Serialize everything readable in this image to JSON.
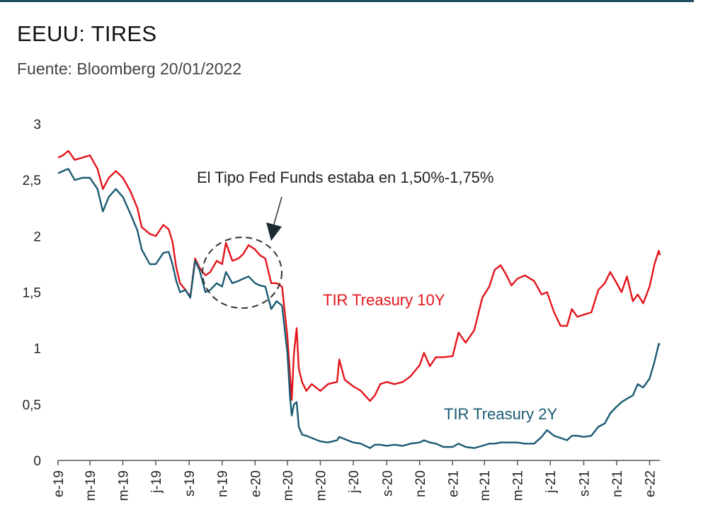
{
  "title": "EEUU: TIRES",
  "subtitle": "Fuente: Bloomberg 20/01/2022",
  "chart_data": {
    "type": "line",
    "title": "EEUU: TIRES",
    "subtitle": "Fuente: Bloomberg 20/01/2022",
    "ylim": [
      0,
      3
    ],
    "yticks": [
      0,
      0.5,
      1,
      1.5,
      2,
      2.5,
      3
    ],
    "ytick_labels": [
      "0",
      "0,5",
      "1",
      "1,5",
      "2",
      "2,5",
      "3"
    ],
    "xlim": [
      "2019-01-01",
      "2022-01-20"
    ],
    "xticks": [
      "2019-01-01",
      "2019-03-01",
      "2019-05-01",
      "2019-07-01",
      "2019-09-01",
      "2019-11-01",
      "2020-01-01",
      "2020-03-01",
      "2020-05-01",
      "2020-07-01",
      "2020-09-01",
      "2020-11-01",
      "2021-01-01",
      "2021-03-01",
      "2021-05-01",
      "2021-07-01",
      "2021-09-01",
      "2021-11-01",
      "2022-01-01"
    ],
    "xtick_labels": [
      "e-19",
      "m-19",
      "m-19",
      "j-19",
      "s-19",
      "n-19",
      "e-20",
      "m-20",
      "m-20",
      "j-20",
      "s-20",
      "n-20",
      "e-21",
      "m-21",
      "m-21",
      "j-21",
      "s-21",
      "n-21",
      "e-22"
    ],
    "grid": false,
    "series": [
      {
        "name": "TIR Treasury 10Y",
        "color": "#e3141b",
        "points": [
          [
            "2019-01-01",
            2.7
          ],
          [
            "2019-01-10",
            2.72
          ],
          [
            "2019-01-20",
            2.76
          ],
          [
            "2019-02-01",
            2.68
          ],
          [
            "2019-02-15",
            2.7
          ],
          [
            "2019-03-01",
            2.72
          ],
          [
            "2019-03-15",
            2.6
          ],
          [
            "2019-03-25",
            2.42
          ],
          [
            "2019-04-05",
            2.52
          ],
          [
            "2019-04-18",
            2.58
          ],
          [
            "2019-05-01",
            2.52
          ],
          [
            "2019-05-15",
            2.4
          ],
          [
            "2019-05-28",
            2.25
          ],
          [
            "2019-06-05",
            2.08
          ],
          [
            "2019-06-20",
            2.02
          ],
          [
            "2019-07-01",
            2.0
          ],
          [
            "2019-07-15",
            2.1
          ],
          [
            "2019-07-25",
            2.06
          ],
          [
            "2019-08-01",
            1.95
          ],
          [
            "2019-08-08",
            1.72
          ],
          [
            "2019-08-15",
            1.58
          ],
          [
            "2019-08-25",
            1.52
          ],
          [
            "2019-09-03",
            1.46
          ],
          [
            "2019-09-12",
            1.8
          ],
          [
            "2019-09-20",
            1.72
          ],
          [
            "2019-10-01",
            1.65
          ],
          [
            "2019-10-10",
            1.68
          ],
          [
            "2019-10-22",
            1.78
          ],
          [
            "2019-11-01",
            1.75
          ],
          [
            "2019-11-08",
            1.94
          ],
          [
            "2019-11-20",
            1.78
          ],
          [
            "2019-12-01",
            1.8
          ],
          [
            "2019-12-10",
            1.84
          ],
          [
            "2019-12-20",
            1.92
          ],
          [
            "2020-01-01",
            1.88
          ],
          [
            "2020-01-10",
            1.83
          ],
          [
            "2020-01-20",
            1.8
          ],
          [
            "2020-01-31",
            1.58
          ],
          [
            "2020-02-10",
            1.58
          ],
          [
            "2020-02-20",
            1.55
          ],
          [
            "2020-03-01",
            1.1
          ],
          [
            "2020-03-06",
            0.75
          ],
          [
            "2020-03-09",
            0.54
          ],
          [
            "2020-03-13",
            0.95
          ],
          [
            "2020-03-18",
            1.18
          ],
          [
            "2020-03-22",
            0.82
          ],
          [
            "2020-03-28",
            0.7
          ],
          [
            "2020-04-05",
            0.62
          ],
          [
            "2020-04-15",
            0.68
          ],
          [
            "2020-05-01",
            0.62
          ],
          [
            "2020-05-15",
            0.68
          ],
          [
            "2020-06-01",
            0.7
          ],
          [
            "2020-06-05",
            0.9
          ],
          [
            "2020-06-15",
            0.72
          ],
          [
            "2020-07-01",
            0.66
          ],
          [
            "2020-07-15",
            0.62
          ],
          [
            "2020-08-01",
            0.53
          ],
          [
            "2020-08-10",
            0.58
          ],
          [
            "2020-08-20",
            0.68
          ],
          [
            "2020-09-01",
            0.7
          ],
          [
            "2020-09-15",
            0.68
          ],
          [
            "2020-10-01",
            0.7
          ],
          [
            "2020-10-15",
            0.75
          ],
          [
            "2020-11-01",
            0.85
          ],
          [
            "2020-11-09",
            0.96
          ],
          [
            "2020-11-20",
            0.84
          ],
          [
            "2020-12-01",
            0.92
          ],
          [
            "2020-12-15",
            0.92
          ],
          [
            "2021-01-01",
            0.93
          ],
          [
            "2021-01-12",
            1.14
          ],
          [
            "2021-01-25",
            1.05
          ],
          [
            "2021-02-10",
            1.16
          ],
          [
            "2021-02-25",
            1.45
          ],
          [
            "2021-03-10",
            1.55
          ],
          [
            "2021-03-20",
            1.7
          ],
          [
            "2021-03-31",
            1.74
          ],
          [
            "2021-04-10",
            1.66
          ],
          [
            "2021-04-20",
            1.56
          ],
          [
            "2021-05-01",
            1.62
          ],
          [
            "2021-05-15",
            1.65
          ],
          [
            "2021-06-01",
            1.6
          ],
          [
            "2021-06-15",
            1.48
          ],
          [
            "2021-06-25",
            1.5
          ],
          [
            "2021-07-08",
            1.32
          ],
          [
            "2021-07-20",
            1.2
          ],
          [
            "2021-08-01",
            1.2
          ],
          [
            "2021-08-10",
            1.35
          ],
          [
            "2021-08-20",
            1.28
          ],
          [
            "2021-09-01",
            1.3
          ],
          [
            "2021-09-15",
            1.32
          ],
          [
            "2021-09-28",
            1.52
          ],
          [
            "2021-10-10",
            1.58
          ],
          [
            "2021-10-20",
            1.68
          ],
          [
            "2021-11-01",
            1.58
          ],
          [
            "2021-11-10",
            1.5
          ],
          [
            "2021-11-20",
            1.64
          ],
          [
            "2021-12-01",
            1.42
          ],
          [
            "2021-12-10",
            1.48
          ],
          [
            "2021-12-20",
            1.4
          ],
          [
            "2022-01-01",
            1.55
          ],
          [
            "2022-01-10",
            1.75
          ],
          [
            "2022-01-18",
            1.87
          ],
          [
            "2022-01-20",
            1.83
          ]
        ]
      },
      {
        "name": "TIR Treasury 2Y",
        "color": "#1a5a72",
        "points": [
          [
            "2019-01-01",
            2.56
          ],
          [
            "2019-01-10",
            2.58
          ],
          [
            "2019-01-20",
            2.6
          ],
          [
            "2019-02-01",
            2.5
          ],
          [
            "2019-02-15",
            2.52
          ],
          [
            "2019-03-01",
            2.52
          ],
          [
            "2019-03-15",
            2.42
          ],
          [
            "2019-03-25",
            2.22
          ],
          [
            "2019-04-05",
            2.35
          ],
          [
            "2019-04-18",
            2.42
          ],
          [
            "2019-05-01",
            2.35
          ],
          [
            "2019-05-15",
            2.2
          ],
          [
            "2019-05-28",
            2.05
          ],
          [
            "2019-06-05",
            1.88
          ],
          [
            "2019-06-20",
            1.75
          ],
          [
            "2019-07-01",
            1.75
          ],
          [
            "2019-07-15",
            1.85
          ],
          [
            "2019-07-25",
            1.86
          ],
          [
            "2019-08-01",
            1.75
          ],
          [
            "2019-08-08",
            1.6
          ],
          [
            "2019-08-15",
            1.5
          ],
          [
            "2019-08-25",
            1.52
          ],
          [
            "2019-09-03",
            1.45
          ],
          [
            "2019-09-12",
            1.78
          ],
          [
            "2019-09-20",
            1.7
          ],
          [
            "2019-10-01",
            1.5
          ],
          [
            "2019-10-10",
            1.52
          ],
          [
            "2019-10-22",
            1.58
          ],
          [
            "2019-11-01",
            1.55
          ],
          [
            "2019-11-08",
            1.68
          ],
          [
            "2019-11-20",
            1.58
          ],
          [
            "2019-12-01",
            1.6
          ],
          [
            "2019-12-10",
            1.62
          ],
          [
            "2019-12-20",
            1.64
          ],
          [
            "2020-01-01",
            1.58
          ],
          [
            "2020-01-10",
            1.56
          ],
          [
            "2020-01-20",
            1.55
          ],
          [
            "2020-01-31",
            1.35
          ],
          [
            "2020-02-10",
            1.42
          ],
          [
            "2020-02-20",
            1.38
          ],
          [
            "2020-03-01",
            0.95
          ],
          [
            "2020-03-06",
            0.55
          ],
          [
            "2020-03-09",
            0.4
          ],
          [
            "2020-03-13",
            0.5
          ],
          [
            "2020-03-18",
            0.52
          ],
          [
            "2020-03-22",
            0.3
          ],
          [
            "2020-03-28",
            0.23
          ],
          [
            "2020-04-05",
            0.22
          ],
          [
            "2020-04-15",
            0.2
          ],
          [
            "2020-05-01",
            0.17
          ],
          [
            "2020-05-15",
            0.16
          ],
          [
            "2020-06-01",
            0.18
          ],
          [
            "2020-06-05",
            0.21
          ],
          [
            "2020-06-15",
            0.19
          ],
          [
            "2020-07-01",
            0.16
          ],
          [
            "2020-07-15",
            0.15
          ],
          [
            "2020-08-01",
            0.11
          ],
          [
            "2020-08-10",
            0.14
          ],
          [
            "2020-08-20",
            0.14
          ],
          [
            "2020-09-01",
            0.13
          ],
          [
            "2020-09-15",
            0.14
          ],
          [
            "2020-10-01",
            0.13
          ],
          [
            "2020-10-15",
            0.15
          ],
          [
            "2020-11-01",
            0.16
          ],
          [
            "2020-11-09",
            0.18
          ],
          [
            "2020-11-20",
            0.16
          ],
          [
            "2020-12-01",
            0.15
          ],
          [
            "2020-12-15",
            0.12
          ],
          [
            "2021-01-01",
            0.12
          ],
          [
            "2021-01-12",
            0.15
          ],
          [
            "2021-01-25",
            0.12
          ],
          [
            "2021-02-10",
            0.11
          ],
          [
            "2021-02-25",
            0.13
          ],
          [
            "2021-03-10",
            0.15
          ],
          [
            "2021-03-20",
            0.15
          ],
          [
            "2021-03-31",
            0.16
          ],
          [
            "2021-04-10",
            0.16
          ],
          [
            "2021-04-20",
            0.16
          ],
          [
            "2021-05-01",
            0.16
          ],
          [
            "2021-05-15",
            0.15
          ],
          [
            "2021-06-01",
            0.15
          ],
          [
            "2021-06-15",
            0.21
          ],
          [
            "2021-06-25",
            0.27
          ],
          [
            "2021-07-08",
            0.22
          ],
          [
            "2021-07-20",
            0.2
          ],
          [
            "2021-08-01",
            0.18
          ],
          [
            "2021-08-10",
            0.22
          ],
          [
            "2021-08-20",
            0.22
          ],
          [
            "2021-09-01",
            0.21
          ],
          [
            "2021-09-15",
            0.22
          ],
          [
            "2021-09-28",
            0.3
          ],
          [
            "2021-10-10",
            0.33
          ],
          [
            "2021-10-20",
            0.42
          ],
          [
            "2021-11-01",
            0.48
          ],
          [
            "2021-11-10",
            0.52
          ],
          [
            "2021-11-20",
            0.55
          ],
          [
            "2021-12-01",
            0.58
          ],
          [
            "2021-12-10",
            0.68
          ],
          [
            "2021-12-20",
            0.65
          ],
          [
            "2022-01-01",
            0.73
          ],
          [
            "2022-01-10",
            0.88
          ],
          [
            "2022-01-18",
            1.04
          ],
          [
            "2022-01-20",
            1.03
          ]
        ]
      }
    ],
    "annotations": [
      {
        "id": "fed-note",
        "text": "El Tipo Fed Funds estaba en 1,50%-1,75%"
      },
      {
        "id": "label-10y",
        "text": "TIR Treasury 10Y"
      },
      {
        "id": "label-2y",
        "text": "TIR Treasury 2Y"
      }
    ]
  }
}
